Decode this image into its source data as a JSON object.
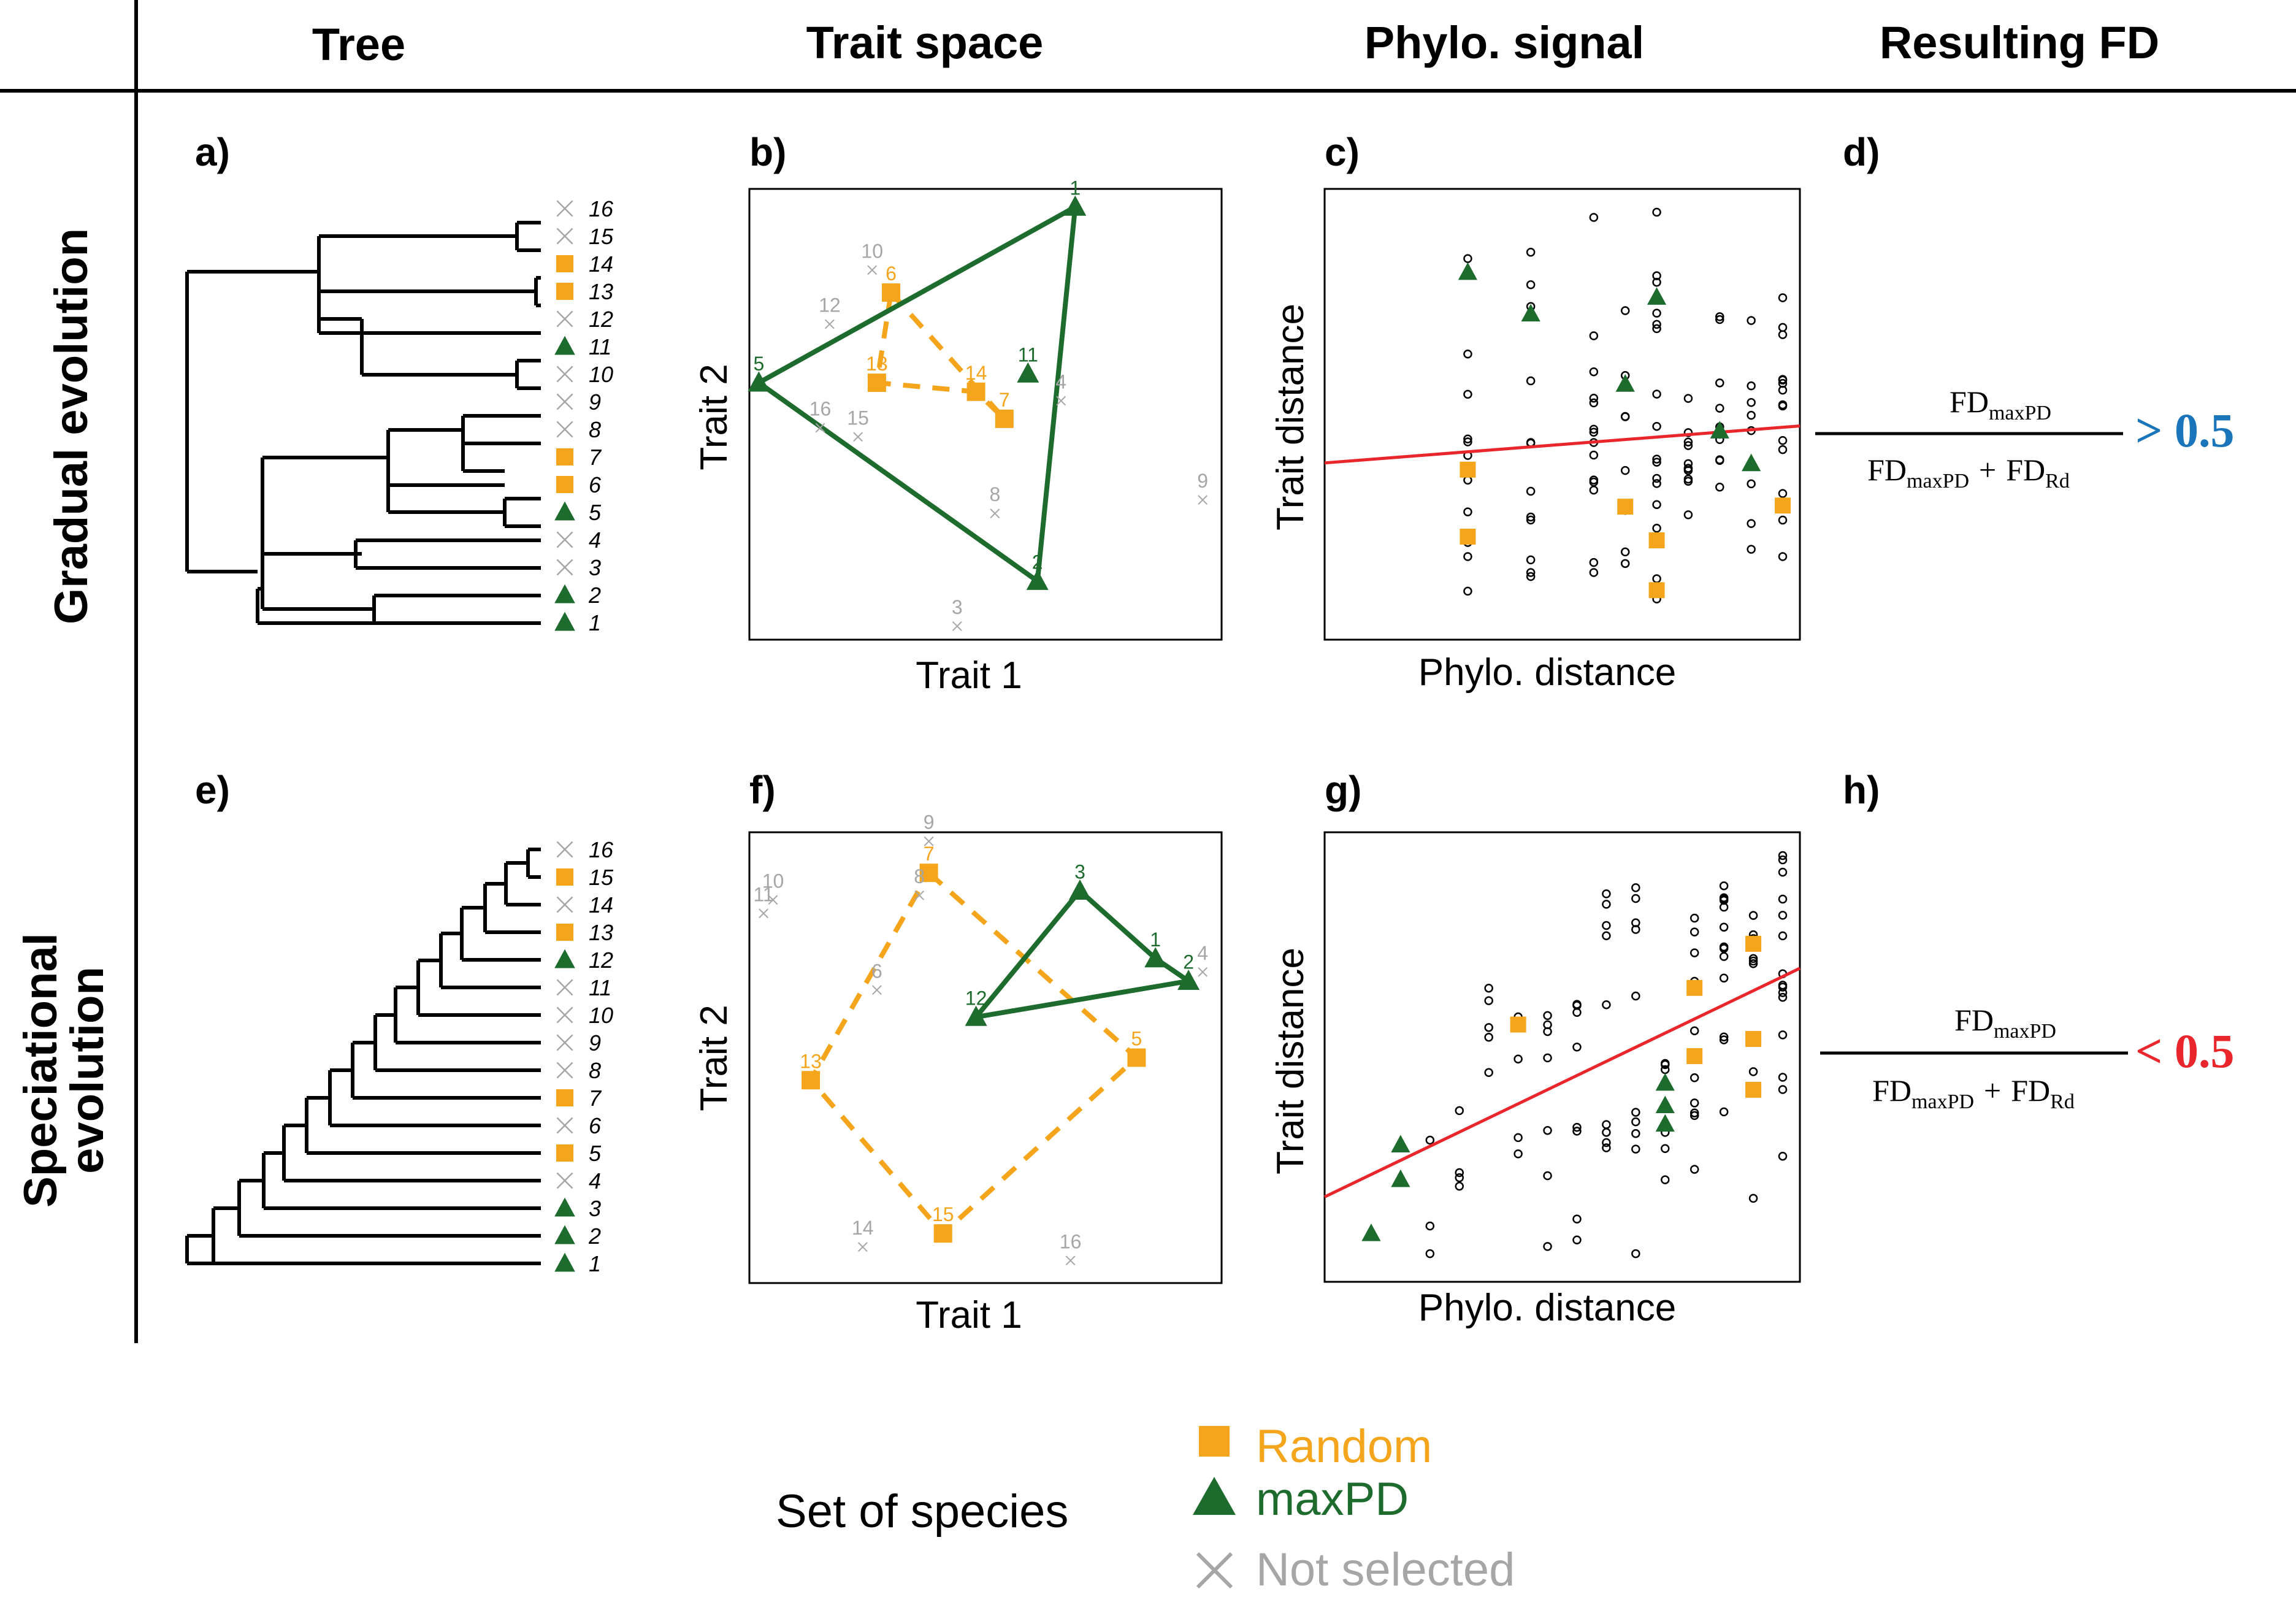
{
  "colors": {
    "random": "#f5a51c",
    "maxpd": "#1e6b2e",
    "not_selected": "#a6a6a6",
    "regression": "#e8262b",
    "greater": "#1b75bb",
    "less": "#e8262b"
  },
  "headers": {
    "tree": "Tree",
    "trait_space": "Trait space",
    "phylo_signal": "Phylo. signal",
    "resulting_fd": "Resulting FD"
  },
  "rows": {
    "gradual": "Gradual evolution",
    "speciational_line1": "Speciational",
    "speciational_line2": "evolution"
  },
  "panel_labels": [
    "a)",
    "b)",
    "c)",
    "d)",
    "e)",
    "f)",
    "g)",
    "h)"
  ],
  "axes": {
    "trait1": "Trait 1",
    "trait2": "Trait 2",
    "trait_distance": "Trait distance",
    "phylo_distance": "Phylo. distance"
  },
  "formula": {
    "fd": "FD",
    "sub_maxpd": "maxPD",
    "sub_rd": "Rd",
    "plus": "+",
    "gradual_result": "> 0.5",
    "speciational_result": "< 0.5"
  },
  "tree_a": {
    "tips": [
      {
        "label": "16",
        "set": "none"
      },
      {
        "label": "15",
        "set": "none"
      },
      {
        "label": "14",
        "set": "random"
      },
      {
        "label": "13",
        "set": "random"
      },
      {
        "label": "12",
        "set": "none"
      },
      {
        "label": "11",
        "set": "maxpd"
      },
      {
        "label": "10",
        "set": "none"
      },
      {
        "label": "9",
        "set": "none"
      },
      {
        "label": "8",
        "set": "none"
      },
      {
        "label": "7",
        "set": "random"
      },
      {
        "label": "6",
        "set": "random"
      },
      {
        "label": "5",
        "set": "maxpd"
      },
      {
        "label": "4",
        "set": "none"
      },
      {
        "label": "3",
        "set": "none"
      },
      {
        "label": "2",
        "set": "maxpd"
      },
      {
        "label": "1",
        "set": "maxpd"
      }
    ]
  },
  "tree_e": {
    "tips": [
      {
        "label": "16",
        "set": "none"
      },
      {
        "label": "15",
        "set": "random"
      },
      {
        "label": "14",
        "set": "none"
      },
      {
        "label": "13",
        "set": "random"
      },
      {
        "label": "12",
        "set": "maxpd"
      },
      {
        "label": "11",
        "set": "none"
      },
      {
        "label": "10",
        "set": "none"
      },
      {
        "label": "9",
        "set": "none"
      },
      {
        "label": "8",
        "set": "none"
      },
      {
        "label": "7",
        "set": "random"
      },
      {
        "label": "6",
        "set": "none"
      },
      {
        "label": "5",
        "set": "random"
      },
      {
        "label": "4",
        "set": "none"
      },
      {
        "label": "3",
        "set": "maxpd"
      },
      {
        "label": "2",
        "set": "maxpd"
      },
      {
        "label": "1",
        "set": "maxpd"
      }
    ]
  },
  "trait_b": {
    "points": [
      {
        "label": "1",
        "set": "maxpd",
        "x": 0.69,
        "y": 0.96
      },
      {
        "label": "2",
        "set": "maxpd",
        "x": 0.61,
        "y": 0.13
      },
      {
        "label": "3",
        "set": "none",
        "x": 0.44,
        "y": 0.03
      },
      {
        "label": "4",
        "set": "none",
        "x": 0.66,
        "y": 0.53
      },
      {
        "label": "5",
        "set": "maxpd",
        "x": 0.02,
        "y": 0.57
      },
      {
        "label": "6",
        "set": "random",
        "x": 0.3,
        "y": 0.77
      },
      {
        "label": "7",
        "set": "random",
        "x": 0.54,
        "y": 0.49
      },
      {
        "label": "8",
        "set": "none",
        "x": 0.52,
        "y": 0.28
      },
      {
        "label": "9",
        "set": "none",
        "x": 0.96,
        "y": 0.31
      },
      {
        "label": "10",
        "set": "none",
        "x": 0.26,
        "y": 0.82
      },
      {
        "label": "11",
        "set": "maxpd",
        "x": 0.59,
        "y": 0.59
      },
      {
        "label": "12",
        "set": "none",
        "x": 0.17,
        "y": 0.7
      },
      {
        "label": "13",
        "set": "random",
        "x": 0.27,
        "y": 0.57
      },
      {
        "label": "14",
        "set": "random",
        "x": 0.48,
        "y": 0.55
      },
      {
        "label": "15",
        "set": "none",
        "x": 0.23,
        "y": 0.45
      },
      {
        "label": "16",
        "set": "none",
        "x": 0.15,
        "y": 0.47
      }
    ],
    "maxpd_hull": [
      "1",
      "2",
      "5"
    ],
    "random_hull": [
      "6",
      "7",
      "14",
      "13"
    ]
  },
  "trait_f": {
    "points": [
      {
        "label": "1",
        "set": "maxpd",
        "x": 0.86,
        "y": 0.72
      },
      {
        "label": "2",
        "set": "maxpd",
        "x": 0.93,
        "y": 0.67
      },
      {
        "label": "3",
        "set": "maxpd",
        "x": 0.7,
        "y": 0.87
      },
      {
        "label": "4",
        "set": "none",
        "x": 0.96,
        "y": 0.69
      },
      {
        "label": "5",
        "set": "random",
        "x": 0.82,
        "y": 0.5
      },
      {
        "label": "6",
        "set": "none",
        "x": 0.27,
        "y": 0.65
      },
      {
        "label": "7",
        "set": "random",
        "x": 0.38,
        "y": 0.91
      },
      {
        "label": "8",
        "set": "none",
        "x": 0.36,
        "y": 0.86
      },
      {
        "label": "9",
        "set": "none",
        "x": 0.38,
        "y": 0.98
      },
      {
        "label": "10",
        "set": "none",
        "x": 0.05,
        "y": 0.85
      },
      {
        "label": "11",
        "set": "none",
        "x": 0.03,
        "y": 0.82
      },
      {
        "label": "12",
        "set": "maxpd",
        "x": 0.48,
        "y": 0.59
      },
      {
        "label": "13",
        "set": "random",
        "x": 0.13,
        "y": 0.45
      },
      {
        "label": "14",
        "set": "none",
        "x": 0.24,
        "y": 0.08
      },
      {
        "label": "15",
        "set": "random",
        "x": 0.41,
        "y": 0.11
      },
      {
        "label": "16",
        "set": "none",
        "x": 0.68,
        "y": 0.05
      }
    ],
    "maxpd_hull": [
      "3",
      "1",
      "2",
      "12"
    ],
    "random_hull": [
      "7",
      "5",
      "15",
      "13"
    ]
  },
  "legend": {
    "title": "Set of species",
    "random": "Random",
    "maxpd": "maxPD",
    "not_selected": "Not selected"
  }
}
